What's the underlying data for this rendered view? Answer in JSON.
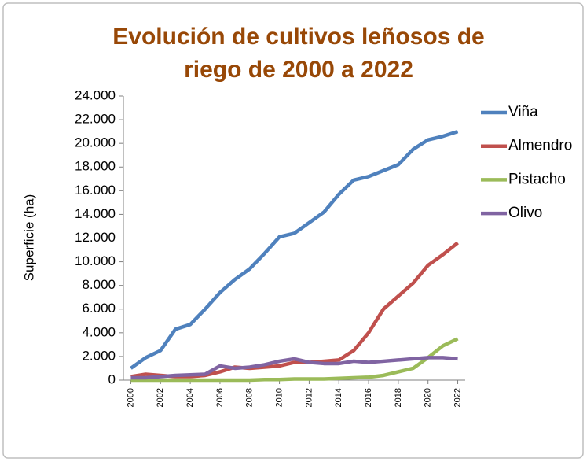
{
  "chart_data": {
    "type": "line",
    "title": [
      "Evolución de cultivos leñosos de",
      "riego de 2000 a 2022"
    ],
    "ylabel": "Superficie (ha)",
    "x": [
      2000,
      2001,
      2002,
      2003,
      2004,
      2005,
      2006,
      2007,
      2008,
      2009,
      2010,
      2011,
      2012,
      2013,
      2014,
      2015,
      2016,
      2017,
      2018,
      2019,
      2020,
      2021,
      2022
    ],
    "xlim": [
      1999.5,
      2022.5
    ],
    "xticks": [
      2000,
      2002,
      2004,
      2006,
      2008,
      2010,
      2012,
      2014,
      2016,
      2018,
      2020,
      2022
    ],
    "ylim": [
      0,
      24000
    ],
    "yticks": [
      0,
      {
        "value": 2000,
        "label": "2.000"
      },
      {
        "value": 4000,
        "label": "4.000"
      },
      {
        "value": 6000,
        "label": "6.000"
      },
      {
        "value": 8000,
        "label": "8.000"
      },
      {
        "value": 10000,
        "label": "10.000"
      },
      {
        "value": 12000,
        "label": "12.000"
      },
      {
        "value": 14000,
        "label": "14.000"
      },
      {
        "value": 16000,
        "label": "16.000"
      },
      {
        "value": 18000,
        "label": "18.000"
      },
      {
        "value": 20000,
        "label": "20.000"
      },
      {
        "value": 22000,
        "label": "22.000"
      },
      {
        "value": 24000,
        "label": "24.000"
      }
    ],
    "grid": false,
    "legend": "right",
    "series": [
      {
        "name": "Viña",
        "color": "#4f81bd",
        "values": [
          1000,
          1900,
          2500,
          4300,
          4700,
          6000,
          7400,
          8500,
          9400,
          10700,
          12100,
          12400,
          13300,
          14200,
          15700,
          16900,
          17200,
          17700,
          18200,
          19500,
          20300,
          20600,
          21000
        ]
      },
      {
        "name": "Almendro",
        "color": "#c0504d",
        "values": [
          300,
          500,
          400,
          300,
          300,
          400,
          700,
          1100,
          1000,
          1100,
          1200,
          1500,
          1500,
          1600,
          1700,
          2500,
          4000,
          6000,
          7100,
          8200,
          9700,
          10600,
          11600
        ]
      },
      {
        "name": "Pistacho",
        "color": "#9bbb59",
        "values": [
          0,
          0,
          0,
          0,
          0,
          0,
          0,
          0,
          0,
          50,
          50,
          100,
          100,
          100,
          150,
          200,
          250,
          400,
          700,
          1000,
          1900,
          2900,
          3500
        ]
      },
      {
        "name": "Olivo",
        "color": "#8064a2",
        "values": [
          200,
          200,
          300,
          400,
          450,
          500,
          1200,
          1000,
          1100,
          1300,
          1600,
          1800,
          1500,
          1400,
          1400,
          1600,
          1500,
          1600,
          1700,
          1800,
          1900,
          1900,
          1800
        ]
      }
    ]
  }
}
